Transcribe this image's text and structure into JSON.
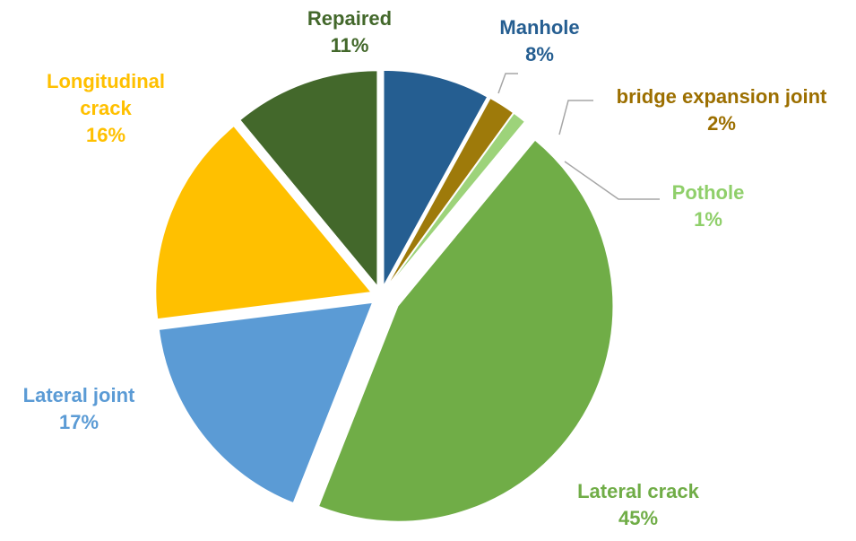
{
  "chart_data": {
    "type": "pie",
    "categories": [
      "Manhole",
      "bridge expansion joint",
      "Pothole",
      "Lateral crack",
      "Lateral joint",
      "Longitudinal crack",
      "Repaired"
    ],
    "values": [
      8,
      2,
      1,
      45,
      17,
      16,
      11
    ],
    "value_labels": [
      "8%",
      "2%",
      "1%",
      "45%",
      "17%",
      "16%",
      "11%"
    ],
    "colors": [
      "#255e91",
      "#9e7a0a",
      "#9dd37a",
      "#70ad47",
      "#5b9bd5",
      "#ffc000",
      "#43682b"
    ],
    "label_colors": [
      "#255e91",
      "#9c6f00",
      "#8fcf6a",
      "#70ad47",
      "#5b9bd5",
      "#ffc000",
      "#43682b"
    ]
  }
}
